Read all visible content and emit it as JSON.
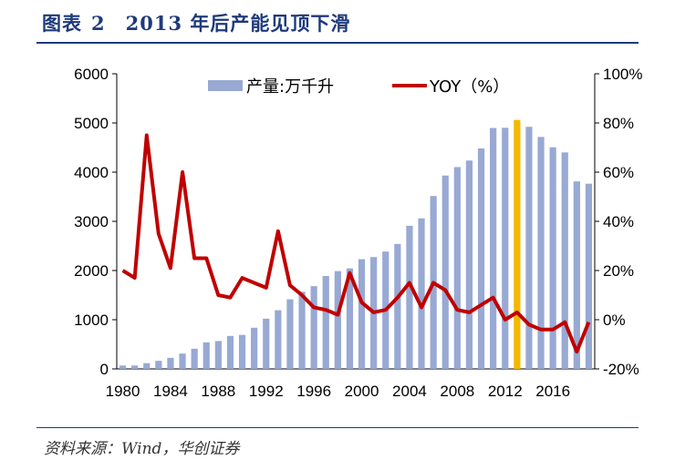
{
  "figure": {
    "label": "图表",
    "number": "2",
    "title": "2013 年后产能见顶下滑"
  },
  "source": "资料来源：Wind，华创证券",
  "colors": {
    "bar": "#98a9d3",
    "bar_highlight": "#f5b800",
    "line": "#c00000",
    "title": "#1f3a7a"
  },
  "chart_data": {
    "type": "bar+line",
    "categories": [
      1980,
      1981,
      1982,
      1983,
      1984,
      1985,
      1986,
      1987,
      1988,
      1989,
      1990,
      1991,
      1992,
      1993,
      1994,
      1995,
      1996,
      1997,
      1998,
      1999,
      2000,
      2001,
      2002,
      2003,
      2004,
      2005,
      2006,
      2007,
      2008,
      2009,
      2010,
      2011,
      2012,
      2013,
      2014,
      2015,
      2016,
      2017,
      2018,
      2019
    ],
    "x_tick_labels": [
      "1980",
      "1984",
      "1988",
      "1992",
      "1996",
      "2000",
      "2004",
      "2008",
      "2012",
      "2016"
    ],
    "highlight_category": 2013,
    "series": [
      {
        "name": "产量:万千升",
        "type": "bar",
        "axis": "left",
        "values": [
          69,
          69,
          117,
          164,
          225,
          311,
          410,
          540,
          566,
          670,
          691,
          837,
          1021,
          1193,
          1415,
          1568,
          1682,
          1888,
          1988,
          2043,
          2231,
          2274,
          2386,
          2540,
          2910,
          3061,
          3515,
          3931,
          4103,
          4236,
          4483,
          4898,
          4902,
          5062,
          4922,
          4716,
          4506,
          4401,
          3812,
          3765
        ]
      },
      {
        "name": "YOY（%）",
        "type": "line",
        "axis": "right",
        "values": [
          20,
          17,
          75,
          35,
          21,
          60,
          25,
          25,
          10,
          9,
          17,
          15,
          13,
          36,
          14,
          10,
          5,
          4,
          2,
          19,
          7,
          3,
          4,
          9,
          15,
          5,
          15,
          12,
          4,
          3,
          6,
          9,
          0,
          3,
          -2,
          -4,
          -4,
          -1,
          -13,
          -1
        ]
      }
    ],
    "y_left": {
      "min": 0,
      "max": 6000,
      "ticks": [
        "0",
        "1000",
        "2000",
        "3000",
        "4000",
        "5000",
        "6000"
      ]
    },
    "y_right": {
      "min": -20,
      "max": 100,
      "ticks": [
        "-20%",
        "0%",
        "20%",
        "40%",
        "60%",
        "80%",
        "100%"
      ]
    },
    "legend": [
      "产量:万千升",
      "YOY（%）"
    ],
    "legend_position": "top"
  }
}
